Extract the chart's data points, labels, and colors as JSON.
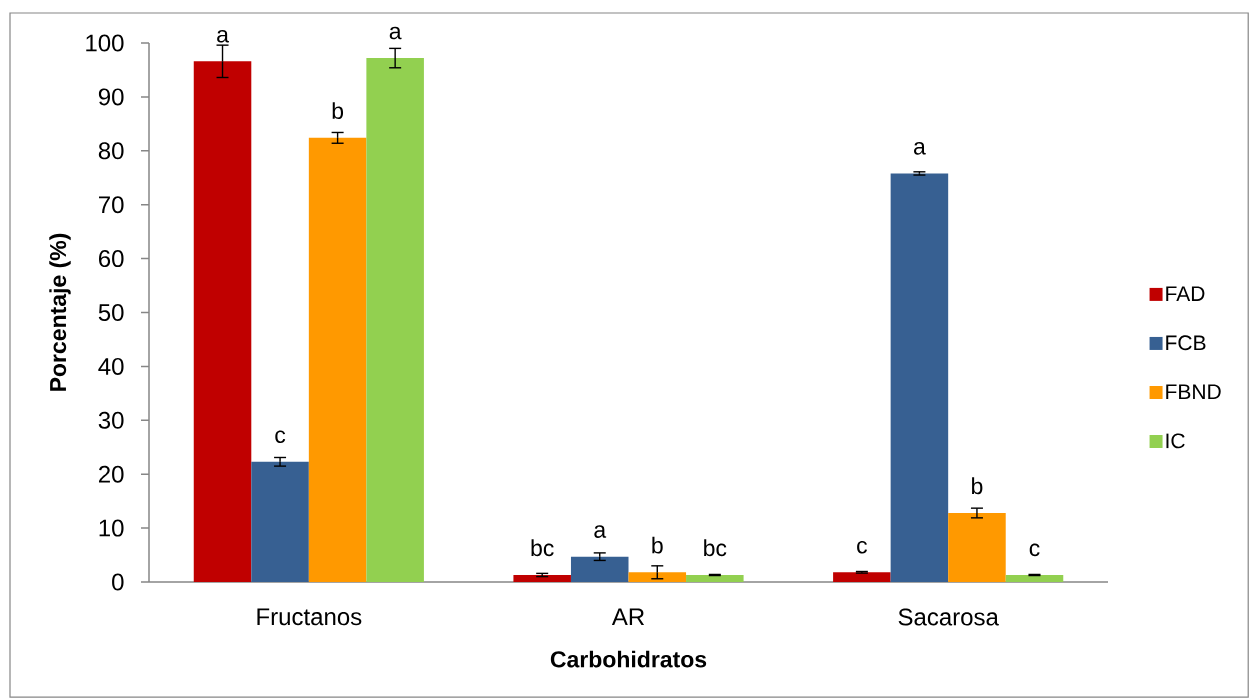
{
  "chart_data": {
    "type": "bar",
    "xlabel": "Carbohidratos",
    "ylabel": "Porcentaje (%)",
    "categories": [
      "Fructanos",
      "AR",
      "Sacarosa"
    ],
    "series": [
      {
        "name": "FAD",
        "color": "#c00000",
        "values": [
          96.6,
          1.3,
          1.8
        ],
        "errors": [
          3.0,
          0.3,
          0.15
        ],
        "value_labels": [
          "a",
          "bc",
          "c"
        ]
      },
      {
        "name": "FCB",
        "color": "#376092",
        "values": [
          22.3,
          4.7,
          75.8
        ],
        "errors": [
          0.8,
          0.7,
          0.3
        ],
        "value_labels": [
          "c",
          "a",
          "a"
        ]
      },
      {
        "name": "FBND",
        "color": "#ff9900",
        "values": [
          82.4,
          1.8,
          12.8
        ],
        "errors": [
          1.0,
          1.2,
          0.9
        ],
        "value_labels": [
          "b",
          "b",
          "b"
        ]
      },
      {
        "name": "IC",
        "color": "#92d050",
        "values": [
          97.2,
          1.3,
          1.3
        ],
        "errors": [
          1.8,
          0.1,
          0.1
        ],
        "value_labels": [
          "a",
          "bc",
          "c"
        ]
      }
    ],
    "ylim": [
      0,
      100
    ],
    "yticks": [
      0,
      10,
      20,
      30,
      40,
      50,
      60,
      70,
      80,
      90,
      100
    ],
    "legend": "right"
  }
}
